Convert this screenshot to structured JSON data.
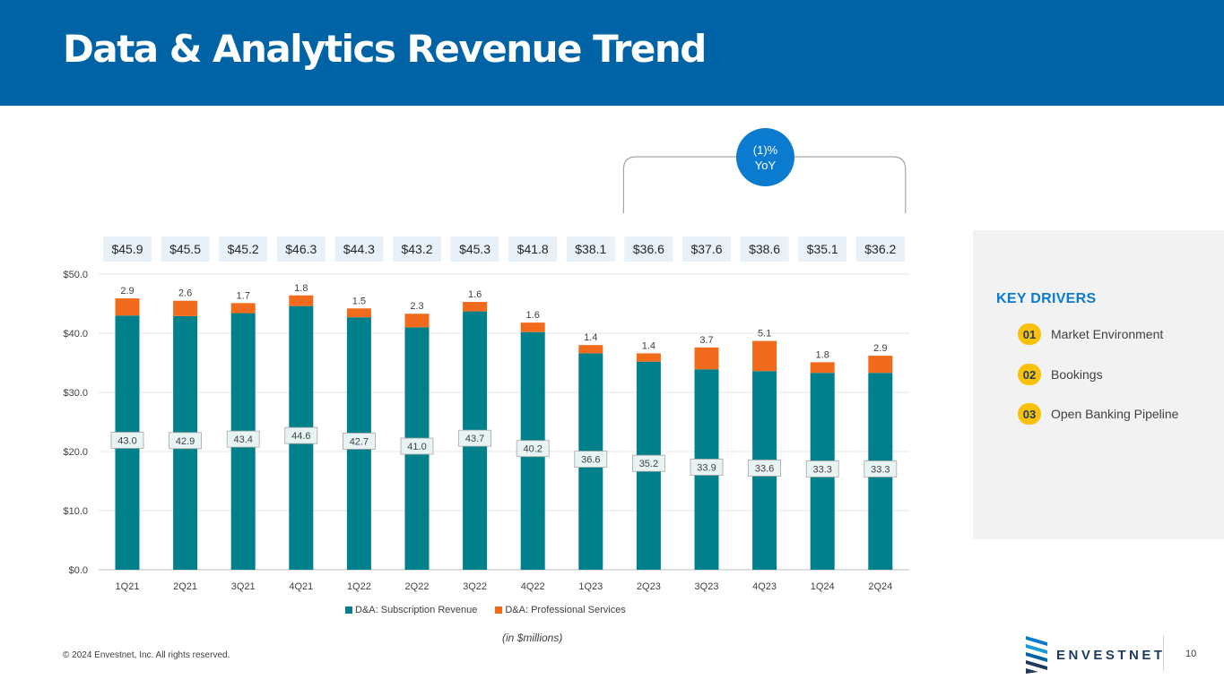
{
  "header": {
    "title": "Data & Analytics Revenue Trend"
  },
  "yoy_badge": {
    "line1": "(1)%",
    "line2": "YoY"
  },
  "chart_data": {
    "type": "bar",
    "stacked": true,
    "categories": [
      "1Q21",
      "2Q21",
      "3Q21",
      "4Q21",
      "1Q22",
      "2Q22",
      "3Q22",
      "4Q22",
      "1Q23",
      "2Q23",
      "3Q23",
      "4Q23",
      "1Q24",
      "2Q24"
    ],
    "series": [
      {
        "name": "D&A: Subscription Revenue",
        "color": "#00808a",
        "values": [
          43.0,
          42.9,
          43.4,
          44.6,
          42.7,
          41.0,
          43.7,
          40.2,
          36.6,
          35.2,
          33.9,
          33.6,
          33.3,
          33.3
        ],
        "labels": [
          "43.0",
          "42.9",
          "43.4",
          "44.6",
          "42.7",
          "41.0",
          "43.7",
          "40.2",
          "36.6",
          "35.2",
          "33.9",
          "33.6",
          "33.3",
          "33.3"
        ]
      },
      {
        "name": "D&A: Professional Services",
        "color": "#f26b1d",
        "values": [
          2.9,
          2.6,
          1.7,
          1.8,
          1.5,
          2.3,
          1.6,
          1.6,
          1.4,
          1.4,
          3.7,
          5.1,
          1.8,
          2.9
        ],
        "labels": [
          "2.9",
          "2.6",
          "1.7",
          "1.8",
          "1.5",
          "2.3",
          "1.6",
          "1.6",
          "1.4",
          "1.4",
          "3.7",
          "5.1",
          "1.8",
          "2.9"
        ]
      }
    ],
    "totals": [
      "$45.9",
      "$45.5",
      "$45.2",
      "$46.3",
      "$44.3",
      "$43.2",
      "$45.3",
      "$41.8",
      "$38.1",
      "$36.6",
      "$37.6",
      "$38.6",
      "$35.1",
      "$36.2"
    ],
    "yaxis": {
      "min": 0,
      "max": 50,
      "step": 10,
      "tick_labels": [
        "$0.0",
        "$10.0",
        "$20.0",
        "$30.0",
        "$40.0",
        "$50.0"
      ]
    },
    "grid": true,
    "legend_position": "bottom",
    "bracket_range": [
      "2Q23",
      "2Q24"
    ],
    "unit_note": "(in $millions)"
  },
  "key_drivers": {
    "title": "KEY DRIVERS",
    "items": [
      {
        "num": "01",
        "label": "Market Environment"
      },
      {
        "num": "02",
        "label": "Bookings"
      },
      {
        "num": "03",
        "label": "Open Banking Pipeline"
      }
    ]
  },
  "footer": {
    "copyright": "© 2024 Envestnet, Inc. All rights reserved.",
    "brand": "ENVESTNET",
    "page": "10"
  }
}
